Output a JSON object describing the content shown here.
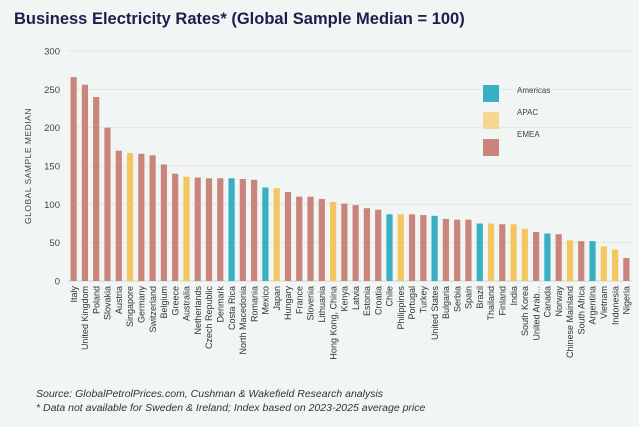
{
  "chart_data": {
    "type": "bar",
    "title": "Business Electricity Rates* (Global Sample Median = 100)",
    "ylabel": "GLOBAL SAMPLE MEDIAN",
    "xlabel": "",
    "ylim": [
      0,
      300
    ],
    "yticks": [
      0,
      50,
      100,
      150,
      200,
      250,
      300
    ],
    "grid": true,
    "legend_placement": "top-right",
    "legend": [
      {
        "name": "Americas",
        "color": "#3aaec3"
      },
      {
        "name": "APAC",
        "color": "#f8d690"
      },
      {
        "name": "EMEA",
        "color": "#c9857c"
      }
    ],
    "region_colors": {
      "Americas": "#3aaec3",
      "APAC": "#f5c560",
      "EMEA": "#c9857c"
    },
    "categories": [
      "Italy",
      "United Kingdom",
      "Poland",
      "Slovakia",
      "Austria",
      "Singapore",
      "Germany",
      "Switzerland",
      "Belgium",
      "Greece",
      "Australia",
      "Netherlands",
      "Czech Republic",
      "Denmark",
      "Costa Rica",
      "North Macedonia",
      "Romania",
      "Mexico",
      "Japan",
      "Hungary",
      "France",
      "Slovenia",
      "Lithuania",
      "Hong Kong, China",
      "Kenya",
      "Latvia",
      "Estonia",
      "Croatia",
      "Chile",
      "Philippines",
      "Portugal",
      "Turkey",
      "United States",
      "Bulgaria",
      "Serbia",
      "Spain",
      "Brazil",
      "Thailand",
      "Finland",
      "India",
      "South Korea",
      "United Arab...",
      "Canada",
      "Norway",
      "Chinese Mainland",
      "South Africa",
      "Argentina",
      "Vietnam",
      "Indonesia",
      "Nigeria"
    ],
    "values": [
      266,
      256,
      240,
      200,
      170,
      167,
      166,
      164,
      152,
      140,
      136,
      135,
      134,
      134,
      134,
      133,
      132,
      122,
      121,
      116,
      110,
      110,
      107,
      103,
      101,
      99,
      95,
      93,
      87,
      87,
      87,
      86,
      85,
      81,
      80,
      80,
      75,
      75,
      74,
      74,
      68,
      64,
      62,
      61,
      53,
      52,
      52,
      45,
      41,
      30
    ],
    "regions": [
      "EMEA",
      "EMEA",
      "EMEA",
      "EMEA",
      "EMEA",
      "APAC",
      "EMEA",
      "EMEA",
      "EMEA",
      "EMEA",
      "APAC",
      "EMEA",
      "EMEA",
      "EMEA",
      "Americas",
      "EMEA",
      "EMEA",
      "Americas",
      "APAC",
      "EMEA",
      "EMEA",
      "EMEA",
      "EMEA",
      "APAC",
      "EMEA",
      "EMEA",
      "EMEA",
      "EMEA",
      "Americas",
      "APAC",
      "EMEA",
      "EMEA",
      "Americas",
      "EMEA",
      "EMEA",
      "EMEA",
      "Americas",
      "APAC",
      "EMEA",
      "APAC",
      "APAC",
      "EMEA",
      "Americas",
      "EMEA",
      "APAC",
      "EMEA",
      "Americas",
      "APAC",
      "APAC",
      "EMEA"
    ]
  },
  "footer": {
    "source": "Source: GlobalPetrolPrices.com, Cushman & Wakefield Research analysis",
    "note": "* Data not available for Sweden & Ireland; Index based on 2023-2025 average price"
  }
}
